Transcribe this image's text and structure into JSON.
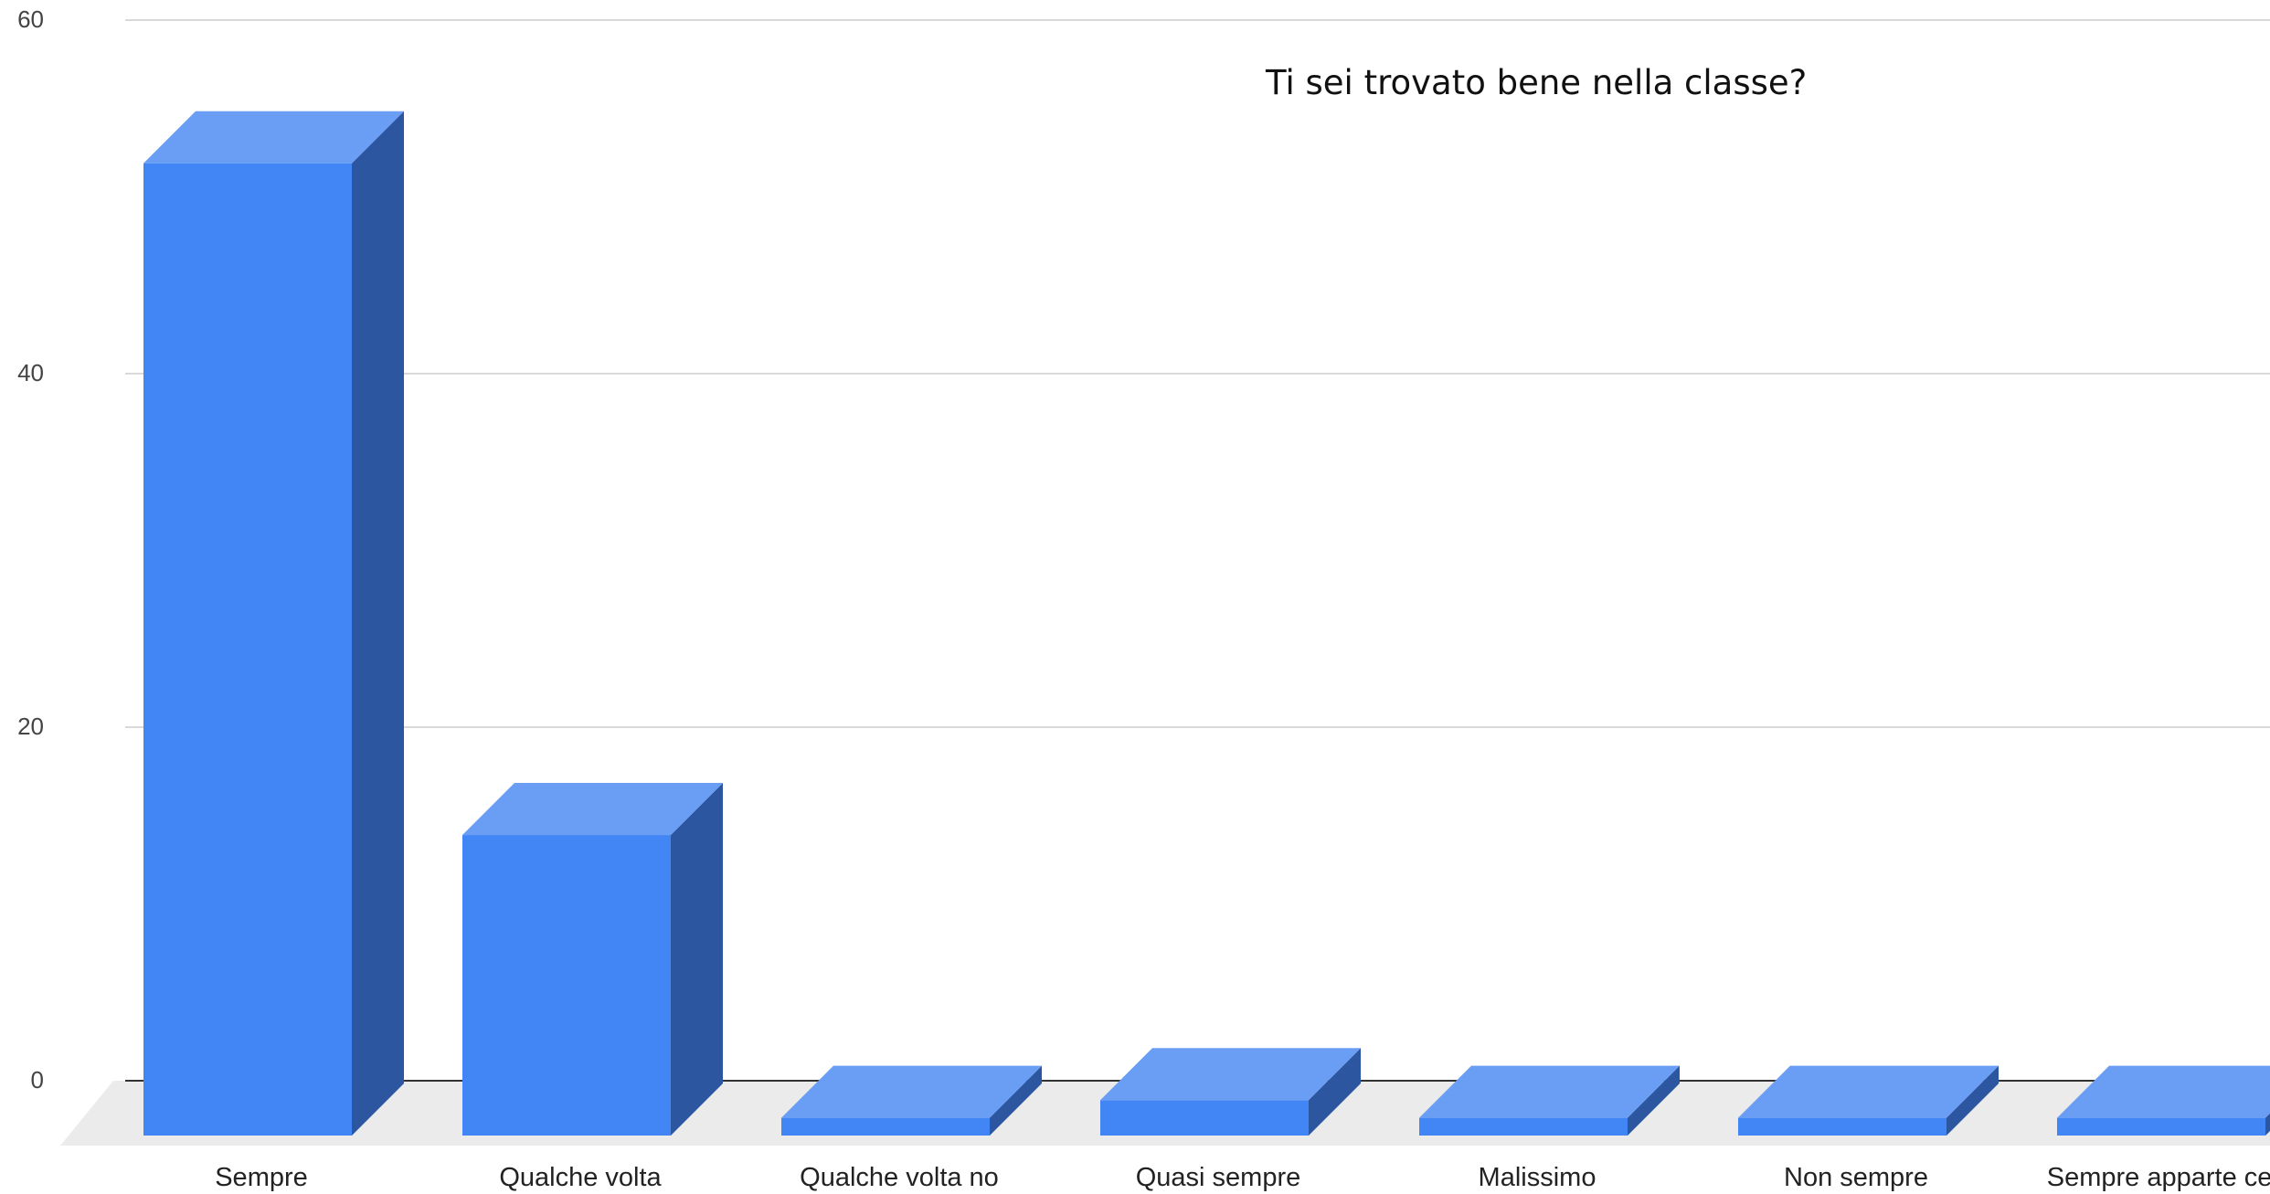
{
  "chart_data": {
    "type": "bar",
    "title": "Ti sei trovato bene nella classe?",
    "categories": [
      "Sempre",
      "Qualche volta",
      "Qualche volta no",
      "Quasi sempre",
      "Malissimo",
      "Non sempre",
      "Sempre apparte certe"
    ],
    "values": [
      55,
      17,
      1,
      2,
      1,
      1,
      1
    ],
    "yticks": [
      "0",
      "20",
      "40",
      "60"
    ],
    "ylim": [
      0,
      60
    ],
    "xlabel": "",
    "ylabel": "",
    "grid": true,
    "style": "3d",
    "colors": {
      "front": "#4285f4",
      "top": "#6a9ef5",
      "side": "#2c56a0",
      "floor": "#ebebeb",
      "grid": "#d9d9d9",
      "axis": "#333333"
    }
  }
}
